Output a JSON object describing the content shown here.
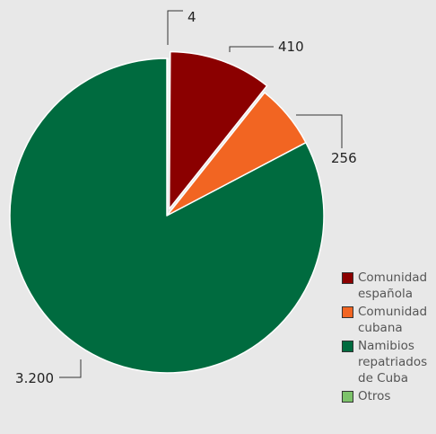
{
  "chart_data": {
    "type": "pie",
    "slices": [
      {
        "label": "Otros",
        "value": 4,
        "value_label": "4",
        "color": "#7dc36b"
      },
      {
        "label": "Comunidad española",
        "value": 410,
        "value_label": "410",
        "color": "#8b0000"
      },
      {
        "label": "Comunidad cubana",
        "value": 256,
        "value_label": "256",
        "color": "#f26522"
      },
      {
        "label": "Namibios repatriados de Cuba",
        "value": 3200,
        "value_label": "3.200",
        "color": "#006b3f"
      }
    ],
    "exploded": "Comunidad española",
    "legend_position": "bottom-right",
    "legend": [
      {
        "label": "Comunidad española",
        "color": "#8b0000"
      },
      {
        "label": "Comunidad cubana",
        "color": "#f26522"
      },
      {
        "label": "Namibios repatriados de Cuba",
        "color": "#006b3f"
      },
      {
        "label": "Otros",
        "color": "#7dc36b"
      }
    ]
  }
}
